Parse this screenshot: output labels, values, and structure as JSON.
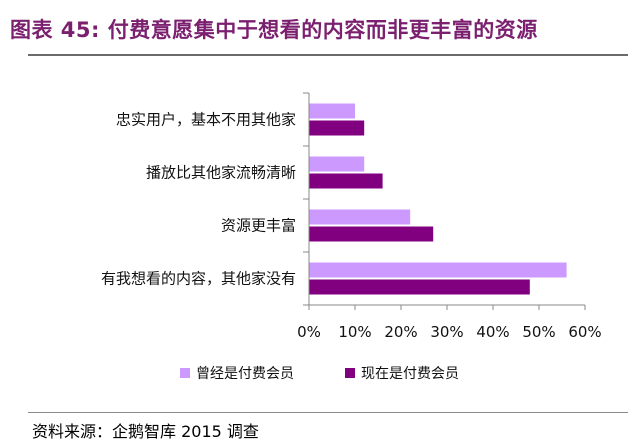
{
  "figure": {
    "title": "图表 45: 付费意愿集中于想看的内容而非更丰富的资源",
    "source": "资料来源：企鹅智库 2015 调查"
  },
  "chart_data": {
    "type": "bar",
    "orientation": "horizontal",
    "categories": [
      "忠实用户，基本不用其他家",
      "播放比其他家流畅清晰",
      "资源更丰富",
      "有我想看的内容，其他家没有"
    ],
    "series": [
      {
        "name": "曾经是付费会员",
        "values": [
          0.1,
          0.12,
          0.22,
          0.56
        ],
        "color": "#cc99ff"
      },
      {
        "name": "现在是付费会员",
        "values": [
          0.12,
          0.16,
          0.27,
          0.48
        ],
        "color": "#800080"
      }
    ],
    "xlim": [
      0,
      0.6
    ],
    "xticks": [
      "0%",
      "10%",
      "20%",
      "30%",
      "40%",
      "50%",
      "60%"
    ],
    "grid": false,
    "legend": "bottom"
  }
}
